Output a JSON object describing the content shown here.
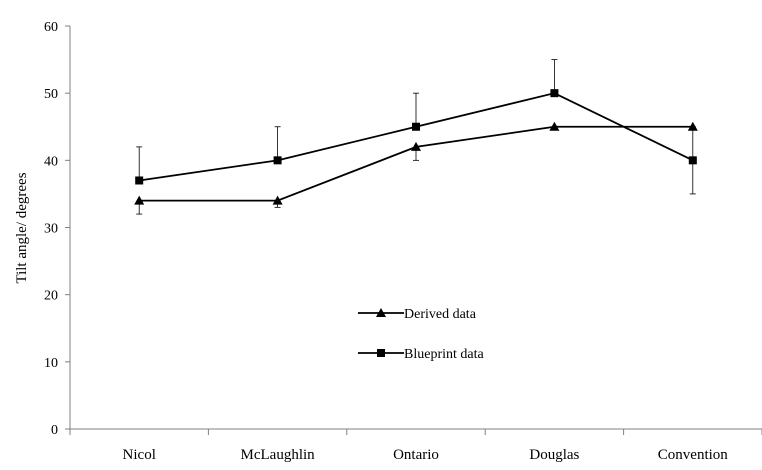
{
  "chart_data": {
    "type": "line",
    "title": "",
    "xlabel": "",
    "ylabel": "Tilt angle/ degrees",
    "categories": [
      "Nicol",
      "McLaughlin",
      "Ontario",
      "Douglas",
      "Convention"
    ],
    "ylim": [
      0,
      60
    ],
    "yticks": [
      0,
      10,
      20,
      30,
      40,
      50,
      60
    ],
    "grid": false,
    "legend_position": "center",
    "series": [
      {
        "name": "Derived data",
        "marker": "triangle",
        "color": "#000000",
        "values": [
          34,
          34,
          42,
          45,
          45
        ],
        "error_low": [
          2,
          1,
          2,
          0,
          0
        ],
        "error_high": [
          0,
          0,
          0,
          0,
          0
        ]
      },
      {
        "name": "Blueprint data",
        "marker": "square",
        "color": "#000000",
        "values": [
          37,
          40,
          45,
          50,
          40
        ],
        "error_low": [
          0,
          0,
          0,
          0,
          5
        ],
        "error_high": [
          5,
          5,
          5,
          5,
          5
        ]
      }
    ]
  }
}
